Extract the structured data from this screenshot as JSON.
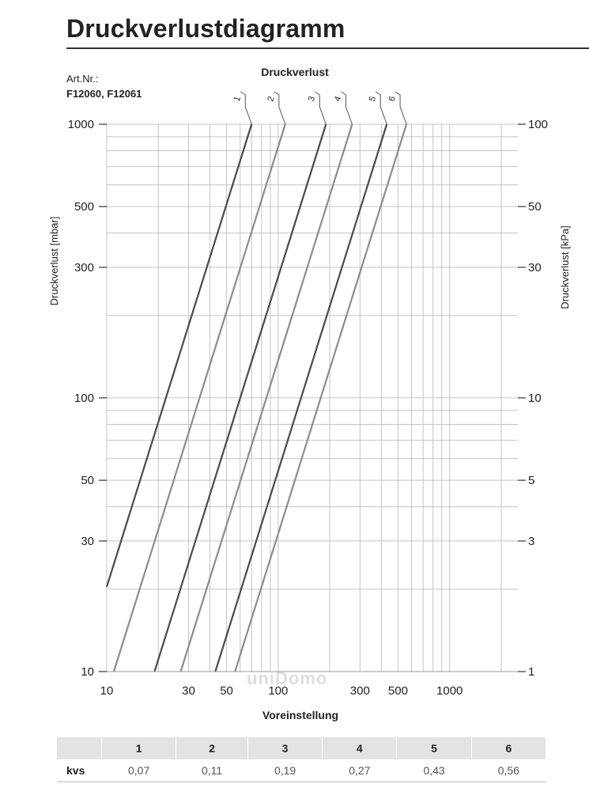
{
  "page": {
    "title": "Druckverlustdiagramm",
    "art_nr_label": "Art.Nr.:",
    "art_nr_value": "F12060, F12061",
    "watermark": "uniDomo"
  },
  "chart_data": {
    "type": "line",
    "title": "Druckverlust",
    "xlabel": "Voreinstellung",
    "ylabel_left": "Druckverlust [mbar]",
    "ylabel_right": "Druckverlust [kPa]",
    "x_scale": "log",
    "y_scale": "log",
    "xlim": [
      10,
      2500
    ],
    "ylim": [
      10,
      1000
    ],
    "x_ticks": [
      10,
      30,
      50,
      100,
      300,
      500,
      1000
    ],
    "x_tick_labels": [
      "10",
      "30",
      "50",
      "100",
      "300",
      "500",
      "1000"
    ],
    "y_ticks_left": [
      10,
      30,
      50,
      100,
      300,
      500,
      1000
    ],
    "y_tick_labels_left": [
      "10",
      "30",
      "50",
      "100",
      "300",
      "500",
      "1000"
    ],
    "y_ticks_right": [
      10,
      30,
      50,
      100,
      300,
      500,
      1000
    ],
    "y_tick_labels_right": [
      "1",
      "3",
      "5",
      "10",
      "30",
      "50",
      "100"
    ],
    "grid": true,
    "series": [
      {
        "name": "1",
        "color": "#4a4a4a",
        "x": [
          10,
          70
        ],
        "y": [
          20.4,
          1000
        ]
      },
      {
        "name": "2",
        "color": "#8c8c8c",
        "x": [
          11,
          110
        ],
        "y": [
          10,
          1000
        ]
      },
      {
        "name": "3",
        "color": "#4a4a4a",
        "x": [
          19,
          190
        ],
        "y": [
          10,
          1000
        ]
      },
      {
        "name": "4",
        "color": "#8c8c8c",
        "x": [
          27,
          270
        ],
        "y": [
          10,
          1000
        ]
      },
      {
        "name": "5",
        "color": "#4a4a4a",
        "x": [
          43,
          430
        ],
        "y": [
          10,
          1000
        ]
      },
      {
        "name": "6",
        "color": "#8c8c8c",
        "x": [
          56,
          560
        ],
        "y": [
          10,
          1000
        ]
      }
    ]
  },
  "kvs_table": {
    "row_label": "kvs",
    "headers": [
      "1",
      "2",
      "3",
      "4",
      "5",
      "6"
    ],
    "values": [
      "0,07",
      "0,11",
      "0,19",
      "0,27",
      "0,43",
      "0,56"
    ]
  }
}
